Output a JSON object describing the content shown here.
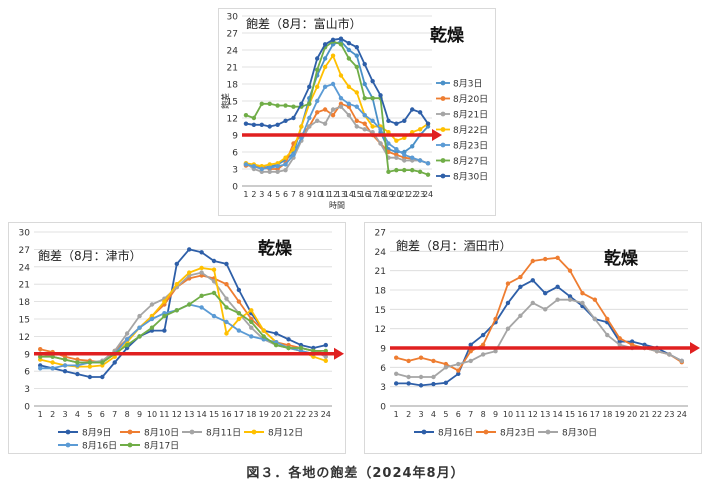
{
  "caption": "図３．各地の飽差（2024年8月）",
  "annotation": "乾燥",
  "colors": {
    "threshold": "#e02020",
    "frame": "#d9d9d9"
  },
  "chart_data": [
    {
      "type": "line",
      "title": "飽差（8月：富山市）",
      "ylabel": "飽差",
      "xlabel": "時間",
      "x": [
        1,
        2,
        3,
        4,
        5,
        6,
        7,
        8,
        9,
        10,
        11,
        12,
        13,
        14,
        15,
        16,
        17,
        18,
        19,
        20,
        21,
        22,
        23,
        24
      ],
      "ylim": [
        0,
        30
      ],
      "yticks": [
        0,
        3,
        6,
        9,
        12,
        15,
        18,
        21,
        24,
        27,
        30
      ],
      "threshold": 9,
      "legend": "right",
      "series": [
        {
          "name": "8月3日",
          "color": "#4a90c8",
          "values": [
            3.8,
            3.6,
            3.2,
            3.4,
            3.8,
            4.6,
            5.8,
            10.5,
            15.5,
            19.5,
            22.5,
            25.0,
            25.5,
            24.0,
            23.0,
            18.0,
            15.5,
            9.5,
            6.5,
            6.0,
            6.0,
            7.0,
            9.0,
            10.5
          ]
        },
        {
          "name": "8月20日",
          "color": "#ee7d31",
          "values": [
            3.6,
            3.6,
            3.3,
            3.0,
            3.0,
            4.0,
            7.5,
            9.0,
            10.5,
            13.0,
            13.5,
            12.5,
            14.5,
            14.0,
            11.5,
            11.0,
            9.0,
            7.5,
            6.0,
            5.5,
            5.0,
            4.8,
            4.5,
            4.0
          ]
        },
        {
          "name": "8月21日",
          "color": "#a5a5a5",
          "values": [
            4.0,
            3.0,
            2.5,
            2.5,
            2.5,
            2.8,
            5.0,
            8.0,
            10.5,
            11.5,
            11.0,
            13.5,
            14.0,
            12.5,
            10.5,
            10.0,
            9.5,
            7.5,
            5.0,
            5.0,
            4.5,
            4.5,
            4.5,
            4.0
          ]
        },
        {
          "name": "8月22日",
          "color": "#ffc000",
          "values": [
            4.0,
            3.8,
            3.5,
            3.8,
            4.0,
            5.0,
            6.5,
            10.5,
            14.5,
            17.5,
            21.0,
            23.0,
            19.5,
            17.5,
            16.5,
            12.5,
            10.5,
            10.5,
            9.5,
            8.0,
            8.5,
            9.5,
            10.0,
            11.0
          ]
        },
        {
          "name": "8月23日",
          "color": "#5b9bd5",
          "values": [
            3.8,
            3.5,
            3.0,
            3.2,
            3.5,
            3.8,
            5.5,
            8.5,
            12.0,
            15.0,
            17.5,
            18.0,
            15.5,
            14.5,
            14.0,
            12.5,
            11.5,
            10.0,
            7.5,
            6.5,
            5.5,
            5.0,
            4.5,
            4.0
          ]
        },
        {
          "name": "8月27日",
          "color": "#70ad47",
          "values": [
            12.5,
            12.0,
            14.5,
            14.5,
            14.2,
            14.2,
            14.0,
            14.0,
            14.5,
            20.5,
            24.5,
            25.5,
            25.0,
            22.5,
            21.0,
            15.5,
            15.5,
            15.5,
            2.5,
            2.8,
            2.8,
            2.8,
            2.5,
            2.0
          ]
        },
        {
          "name": "8月30日",
          "color": "#2e5fa8",
          "values": [
            11.0,
            10.8,
            10.8,
            10.5,
            10.8,
            11.5,
            12.0,
            14.5,
            17.5,
            22.5,
            25.0,
            25.8,
            26.0,
            25.2,
            24.5,
            21.5,
            18.5,
            16.0,
            11.5,
            11.0,
            11.5,
            13.5,
            13.0,
            11.0
          ]
        }
      ]
    },
    {
      "type": "line",
      "title": "飽差（8月：津市）",
      "x": [
        1,
        2,
        3,
        4,
        5,
        6,
        7,
        8,
        9,
        10,
        11,
        12,
        13,
        14,
        15,
        16,
        17,
        18,
        19,
        20,
        21,
        22,
        23,
        24
      ],
      "ylim": [
        0,
        30
      ],
      "yticks": [
        0,
        3,
        6,
        9,
        12,
        15,
        18,
        21,
        24,
        27,
        30
      ],
      "threshold": 9,
      "legend": "bottom",
      "series": [
        {
          "name": "8月9日",
          "color": "#2e5fa8",
          "values": [
            7.0,
            6.5,
            6.0,
            5.5,
            5.0,
            5.0,
            7.5,
            10.0,
            12.0,
            13.0,
            13.0,
            24.5,
            27.0,
            26.5,
            25.0,
            24.5,
            20.0,
            16.0,
            13.0,
            12.5,
            11.5,
            10.5,
            10.0,
            10.5
          ]
        },
        {
          "name": "8月10日",
          "color": "#ee7d31",
          "values": [
            9.8,
            9.3,
            8.5,
            8.0,
            7.8,
            7.5,
            9.5,
            11.5,
            13.5,
            15.5,
            17.5,
            20.5,
            22.0,
            22.5,
            22.0,
            21.0,
            18.0,
            15.0,
            13.0,
            11.0,
            10.5,
            10.0,
            9.5,
            9.0
          ]
        },
        {
          "name": "8月11日",
          "color": "#a5a5a5",
          "values": [
            9.0,
            8.5,
            8.0,
            7.5,
            7.5,
            7.8,
            9.5,
            12.5,
            15.5,
            17.5,
            18.5,
            20.5,
            22.5,
            23.0,
            21.5,
            18.5,
            16.0,
            13.5,
            11.5,
            10.5,
            10.0,
            10.0,
            9.5,
            8.5
          ]
        },
        {
          "name": "8月12日",
          "color": "#ffc000",
          "values": [
            8.0,
            7.5,
            7.0,
            6.8,
            6.8,
            7.0,
            8.5,
            11.0,
            13.5,
            15.5,
            18.0,
            21.0,
            23.0,
            23.8,
            23.5,
            12.5,
            15.0,
            16.5,
            13.0,
            11.0,
            10.0,
            9.5,
            8.5,
            7.8
          ]
        },
        {
          "name": "8月16日",
          "color": "#5b9bd5",
          "values": [
            6.5,
            6.5,
            7.0,
            7.0,
            7.5,
            7.5,
            9.0,
            11.5,
            13.5,
            15.0,
            16.0,
            16.5,
            17.5,
            17.0,
            15.5,
            14.5,
            13.0,
            12.0,
            11.5,
            11.0,
            10.0,
            9.5,
            9.0,
            9.0
          ]
        },
        {
          "name": "8月17日",
          "color": "#70ad47",
          "values": [
            8.5,
            8.5,
            8.0,
            7.5,
            7.5,
            7.5,
            9.0,
            10.5,
            12.0,
            13.5,
            15.5,
            16.5,
            17.5,
            19.0,
            19.5,
            17.0,
            16.0,
            14.5,
            12.0,
            10.5,
            10.0,
            10.0,
            9.5,
            9.5
          ]
        }
      ]
    },
    {
      "type": "line",
      "title": "飽差（8月：酒田市）",
      "x": [
        1,
        2,
        3,
        4,
        5,
        6,
        7,
        8,
        9,
        10,
        11,
        12,
        13,
        14,
        15,
        16,
        17,
        18,
        19,
        20,
        21,
        22,
        23,
        24
      ],
      "ylim": [
        0,
        27
      ],
      "yticks": [
        0,
        3,
        6,
        9,
        12,
        15,
        18,
        21,
        24,
        27
      ],
      "threshold": 9,
      "legend": "bottom",
      "series": [
        {
          "name": "8月16日",
          "color": "#2e5fa8",
          "values": [
            3.5,
            3.5,
            3.2,
            3.4,
            3.6,
            5.0,
            9.5,
            11.0,
            13.0,
            16.0,
            18.5,
            19.5,
            17.5,
            18.5,
            17.0,
            15.5,
            13.5,
            13.0,
            10.0,
            10.0,
            9.5,
            9.0,
            8.0,
            7.0
          ]
        },
        {
          "name": "8月23日",
          "color": "#ee7d31",
          "values": [
            7.5,
            7.0,
            7.5,
            7.0,
            6.5,
            5.5,
            8.5,
            9.5,
            13.5,
            19.0,
            20.0,
            22.5,
            22.8,
            23.0,
            21.0,
            17.5,
            16.5,
            13.5,
            10.5,
            9.5,
            9.0,
            8.5,
            8.0,
            6.8
          ]
        },
        {
          "name": "8月30日",
          "color": "#a5a5a5",
          "values": [
            5.0,
            4.5,
            4.5,
            4.5,
            6.0,
            6.5,
            7.0,
            8.0,
            8.5,
            12.0,
            14.0,
            16.0,
            15.0,
            16.5,
            16.5,
            16.0,
            13.5,
            11.0,
            9.5,
            9.0,
            9.0,
            8.5,
            8.0,
            7.0
          ]
        }
      ]
    }
  ]
}
